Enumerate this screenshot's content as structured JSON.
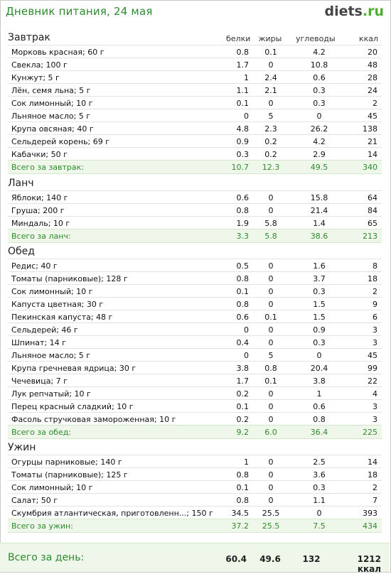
{
  "header": {
    "title": "Дневник питания, 24 мая",
    "logo_main": "diets",
    "logo_suffix": ".ru"
  },
  "columns": {
    "protein": "белки",
    "fat": "жиры",
    "carbs": "углеводы",
    "kcal": "ккал"
  },
  "sections": [
    {
      "title": "Завтрак",
      "items": [
        [
          "Морковь красная; 60 г",
          "0.8",
          "0.1",
          "4.2",
          "20"
        ],
        [
          "Свекла; 100 г",
          "1.7",
          "0",
          "10.8",
          "48"
        ],
        [
          "Кунжут; 5 г",
          "1",
          "2.4",
          "0.6",
          "28"
        ],
        [
          "Лён, семя льна; 5 г",
          "1.1",
          "2.1",
          "0.3",
          "24"
        ],
        [
          "Сок лимонный; 10 г",
          "0.1",
          "0",
          "0.3",
          "2"
        ],
        [
          "Льняное масло; 5 г",
          "0",
          "5",
          "0",
          "45"
        ],
        [
          "Крупа овсяная; 40 г",
          "4.8",
          "2.3",
          "26.2",
          "138"
        ],
        [
          "Сельдерей корень; 69 г",
          "0.9",
          "0.2",
          "4.2",
          "21"
        ],
        [
          "Кабачки; 50 г",
          "0.3",
          "0.2",
          "2.9",
          "14"
        ]
      ],
      "total": [
        "Всего за завтрак:",
        "10.7",
        "12.3",
        "49.5",
        "340"
      ]
    },
    {
      "title": "Ланч",
      "items": [
        [
          "Яблоки; 140 г",
          "0.6",
          "0",
          "15.8",
          "64"
        ],
        [
          "Груша; 200 г",
          "0.8",
          "0",
          "21.4",
          "84"
        ],
        [
          "Миндаль; 10 г",
          "1.9",
          "5.8",
          "1.4",
          "65"
        ]
      ],
      "total": [
        "Всего за ланч:",
        "3.3",
        "5.8",
        "38.6",
        "213"
      ]
    },
    {
      "title": "Обед",
      "items": [
        [
          "Редис; 40 г",
          "0.5",
          "0",
          "1.6",
          "8"
        ],
        [
          "Томаты (парниковые); 128 г",
          "0.8",
          "0",
          "3.7",
          "18"
        ],
        [
          "Сок лимонный; 10 г",
          "0.1",
          "0",
          "0.3",
          "2"
        ],
        [
          "Капуста цветная; 30 г",
          "0.8",
          "0",
          "1.5",
          "9"
        ],
        [
          "Пекинская капуста; 48 г",
          "0.6",
          "0.1",
          "1.5",
          "6"
        ],
        [
          "Сельдерей; 46 г",
          "0",
          "0",
          "0.9",
          "3"
        ],
        [
          "Шпинат; 14 г",
          "0.4",
          "0",
          "0.3",
          "3"
        ],
        [
          "Льняное масло; 5 г",
          "0",
          "5",
          "0",
          "45"
        ],
        [
          "Крупа гречневая ядрица; 30 г",
          "3.8",
          "0.8",
          "20.4",
          "99"
        ],
        [
          "Чечевица; 7 г",
          "1.7",
          "0.1",
          "3.8",
          "22"
        ],
        [
          "Лук репчатый; 10 г",
          "0.2",
          "0",
          "1",
          "4"
        ],
        [
          "Перец красный сладкий; 10 г",
          "0.1",
          "0",
          "0.6",
          "3"
        ],
        [
          "Фасоль стручковая замороженная; 10 г",
          "0.2",
          "0",
          "0.8",
          "3"
        ]
      ],
      "total": [
        "Всего за обед:",
        "9.2",
        "6.0",
        "36.4",
        "225"
      ]
    },
    {
      "title": "Ужин",
      "items": [
        [
          "Огурцы парниковые; 140 г",
          "1",
          "0",
          "2.5",
          "14"
        ],
        [
          "Томаты (парниковые); 125 г",
          "0.8",
          "0",
          "3.6",
          "18"
        ],
        [
          "Сок лимонный; 10 г",
          "0.1",
          "0",
          "0.3",
          "2"
        ],
        [
          "Салат; 50 г",
          "0.8",
          "0",
          "1.1",
          "7"
        ],
        [
          "Скумбрия атлантическая, приготовленн...; 150 г",
          "34.5",
          "25.5",
          "0",
          "393"
        ]
      ],
      "total": [
        "Всего за ужин:",
        "37.2",
        "25.5",
        "7.5",
        "434"
      ]
    }
  ],
  "day_total": {
    "label": "Всего за день:",
    "protein": "60.4",
    "fat": "49.6",
    "carbs": "132",
    "kcal": "1212 ккал"
  }
}
